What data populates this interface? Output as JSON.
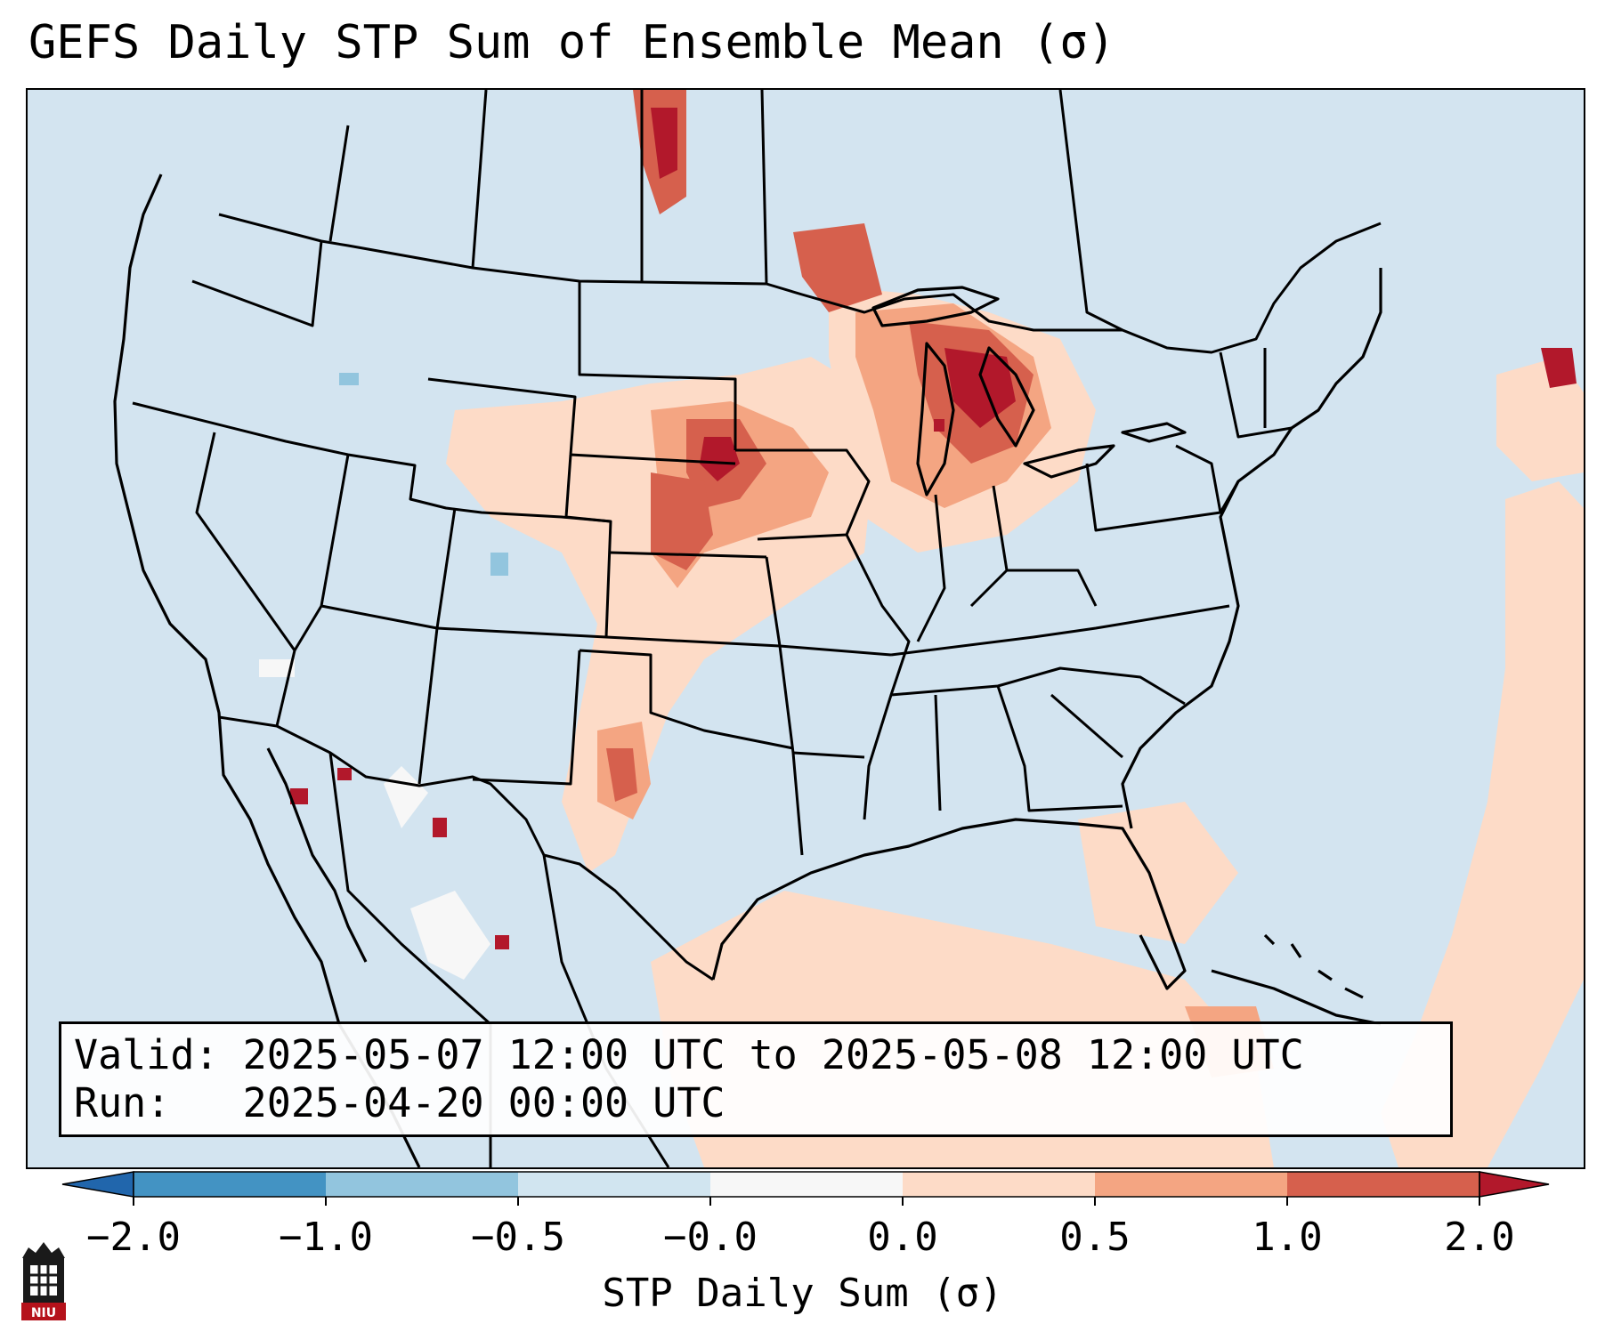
{
  "title": "GEFS Daily STP Sum of Ensemble Mean (σ)",
  "info": {
    "valid_label": "Valid:",
    "valid_value": "2025-05-07 12:00 UTC to 2025-05-08 12:00 UTC",
    "run_label": "Run:",
    "run_value": "2025-04-20 00:00 UTC"
  },
  "colorbar": {
    "label": "STP Daily Sum (σ)",
    "ticks": [
      "−2.0",
      "−1.0",
      "−0.5",
      "−0.0",
      "0.0",
      "0.5",
      "1.0",
      "2.0"
    ],
    "colors": {
      "extend_low": "#2166ac",
      "bin_neg_2_to_neg_1": "#4393c3",
      "bin_neg_1_to_neg_05": "#92c5de",
      "bin_neg_05_to_0": "#d1e5f0",
      "bin_zero": "#f7f7f7",
      "bin_0_to_05": "#fddbc7",
      "bin_05_to_1": "#f4a582",
      "bin_1_to_2": "#d6604d",
      "extend_high": "#b2182b"
    }
  },
  "logo": {
    "text": "NIU",
    "color": "#b5121b"
  },
  "map": {
    "background_color": "#d3e4f0",
    "feature_highlights": [
      "upper-midwest-max",
      "northern-plains-max",
      "high-plains-max",
      "gulf-of-mexico-positive",
      "western-atlantic-positive"
    ]
  }
}
